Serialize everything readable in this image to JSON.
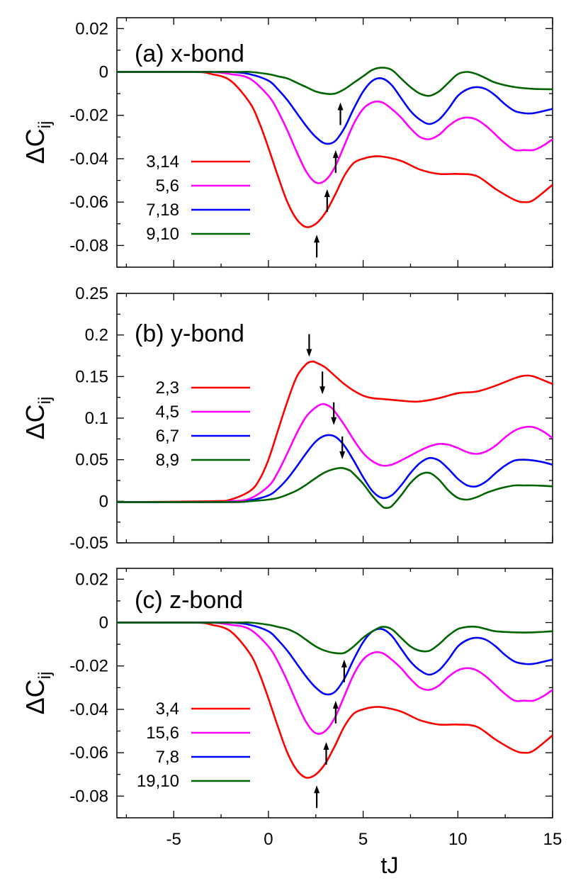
{
  "chart_data": [
    {
      "type": "line",
      "title": "(a) x-bond",
      "ylabel": "ΔC",
      "ylabel_sub": "ij",
      "xlabel": "",
      "xlim": [
        -8,
        15
      ],
      "ylim": [
        -0.09,
        0.025
      ],
      "yticks": [
        0.02,
        0,
        -0.02,
        -0.04,
        -0.06,
        -0.08
      ],
      "ytick_labels": [
        "0.02",
        "0",
        "-0.02",
        "-0.04",
        "-0.06",
        "-0.08"
      ],
      "xticks": [
        -5,
        0,
        5,
        10,
        15
      ],
      "xtick_labels": [],
      "legend_position": "left",
      "series": [
        {
          "name": "3,14",
          "color": "#ff0000",
          "x": [
            -8,
            -4,
            -3,
            -2,
            -1,
            -0.5,
            0,
            0.5,
            1,
            1.5,
            2,
            2.5,
            3,
            3.5,
            4,
            4.5,
            5,
            5.5,
            6,
            7,
            8,
            9,
            10,
            11,
            12,
            13,
            13.5,
            14,
            15
          ],
          "y": [
            0,
            0,
            -0.001,
            -0.004,
            -0.014,
            -0.023,
            -0.035,
            -0.048,
            -0.06,
            -0.068,
            -0.0715,
            -0.07,
            -0.065,
            -0.057,
            -0.048,
            -0.042,
            -0.04,
            -0.039,
            -0.039,
            -0.041,
            -0.045,
            -0.047,
            -0.047,
            -0.048,
            -0.054,
            -0.059,
            -0.06,
            -0.059,
            -0.052
          ]
        },
        {
          "name": "5,6",
          "color": "#ff00ff",
          "x": [
            -8,
            -4,
            -3,
            -2,
            -1,
            0,
            0.5,
            1,
            1.5,
            2,
            2.5,
            3,
            3.5,
            4,
            4.5,
            5,
            5.5,
            6,
            6.5,
            7,
            7.5,
            8,
            8.5,
            9,
            9.5,
            10,
            10.5,
            11,
            11.5,
            12,
            12.5,
            13,
            13.5,
            14,
            14.5,
            15
          ],
          "y": [
            0,
            0,
            0,
            -0.001,
            -0.003,
            -0.011,
            -0.018,
            -0.027,
            -0.037,
            -0.046,
            -0.051,
            -0.05,
            -0.044,
            -0.034,
            -0.024,
            -0.017,
            -0.014,
            -0.014,
            -0.017,
            -0.021,
            -0.026,
            -0.03,
            -0.031,
            -0.029,
            -0.025,
            -0.022,
            -0.021,
            -0.022,
            -0.025,
            -0.029,
            -0.033,
            -0.036,
            -0.036,
            -0.036,
            -0.034,
            -0.031
          ]
        },
        {
          "name": "7,18",
          "color": "#0000ff",
          "x": [
            -8,
            -3,
            -2,
            -1,
            0,
            0.5,
            1,
            1.5,
            2,
            2.5,
            3,
            3.5,
            4,
            4.5,
            5,
            5.5,
            6,
            6.5,
            7,
            7.5,
            8,
            8.5,
            9,
            9.5,
            10,
            10.5,
            11,
            11.5,
            12,
            12.5,
            13,
            13.5,
            14,
            15
          ],
          "y": [
            0,
            0,
            0,
            -0.001,
            -0.004,
            -0.008,
            -0.013,
            -0.019,
            -0.025,
            -0.03,
            -0.033,
            -0.032,
            -0.026,
            -0.017,
            -0.009,
            -0.004,
            -0.003,
            -0.006,
            -0.012,
            -0.018,
            -0.022,
            -0.024,
            -0.022,
            -0.017,
            -0.011,
            -0.008,
            -0.007,
            -0.008,
            -0.011,
            -0.015,
            -0.018,
            -0.019,
            -0.019,
            -0.017
          ]
        },
        {
          "name": "9,10",
          "color": "#006400",
          "x": [
            -8,
            -2,
            -1,
            0,
            0.5,
            1,
            1.5,
            2,
            2.5,
            3,
            3.5,
            4,
            4.5,
            5,
            5.5,
            6,
            6.5,
            7,
            7.5,
            8,
            8.5,
            9,
            9.5,
            10,
            10.5,
            11,
            11.5,
            12,
            13,
            14,
            15
          ],
          "y": [
            0,
            0,
            0,
            -0.001,
            -0.002,
            -0.003,
            -0.005,
            -0.007,
            -0.009,
            -0.01,
            -0.01,
            -0.008,
            -0.005,
            -0.002,
            0.001,
            0.002,
            0.001,
            -0.003,
            -0.007,
            -0.01,
            -0.011,
            -0.009,
            -0.005,
            -0.001,
            0,
            -0.001,
            -0.003,
            -0.005,
            -0.007,
            -0.0078,
            -0.008
          ]
        }
      ],
      "annotations": [
        {
          "type": "arrow-up",
          "x": 2.55,
          "y": -0.0855
        },
        {
          "type": "arrow-up",
          "x": 3.1,
          "y": -0.0645
        },
        {
          "type": "arrow-up",
          "x": 3.55,
          "y": -0.0465
        },
        {
          "type": "arrow-up",
          "x": 3.8,
          "y": -0.0245
        }
      ]
    },
    {
      "type": "line",
      "title": "(b) y-bond",
      "ylabel": "ΔC",
      "ylabel_sub": "ij",
      "xlabel": "",
      "xlim": [
        -8,
        15
      ],
      "ylim": [
        -0.05,
        0.25
      ],
      "yticks": [
        0.25,
        0.2,
        0.15,
        0.1,
        0.05,
        0,
        -0.05
      ],
      "ytick_labels": [
        "0.25",
        "0.2",
        "0.15",
        "0.1",
        "0.05",
        "0",
        "-0.05"
      ],
      "xticks": [
        -5,
        0,
        5,
        10,
        15
      ],
      "xtick_labels": [],
      "legend_position": "left",
      "series": [
        {
          "name": "2,3",
          "color": "#ff0000",
          "x": [
            -8,
            -3,
            -2,
            -1,
            -0.5,
            0,
            0.5,
            1,
            1.5,
            2,
            2.3,
            2.5,
            3,
            3.5,
            4,
            4.5,
            5,
            5.5,
            6,
            6.5,
            7,
            7.5,
            8,
            9,
            10,
            11,
            12,
            13,
            13.5,
            14,
            15
          ],
          "y": [
            -0.001,
            0,
            0.002,
            0.012,
            0.025,
            0.05,
            0.085,
            0.12,
            0.15,
            0.165,
            0.168,
            0.167,
            0.161,
            0.151,
            0.141,
            0.133,
            0.127,
            0.124,
            0.123,
            0.122,
            0.121,
            0.12,
            0.12,
            0.124,
            0.13,
            0.132,
            0.139,
            0.148,
            0.151,
            0.15,
            0.141
          ]
        },
        {
          "name": "4,5",
          "color": "#ff00ff",
          "x": [
            -8,
            -3,
            -2,
            -1,
            0,
            0.5,
            1,
            1.5,
            2,
            2.5,
            2.9,
            3.3,
            3.5,
            4,
            4.5,
            5,
            5.5,
            6,
            6.5,
            7,
            7.5,
            8,
            8.5,
            9,
            9.5,
            10,
            10.5,
            11,
            11.5,
            12,
            12.5,
            13,
            13.5,
            14,
            14.5,
            15
          ],
          "y": [
            -0.001,
            -0.001,
            0,
            0.003,
            0.018,
            0.035,
            0.058,
            0.082,
            0.102,
            0.113,
            0.117,
            0.113,
            0.108,
            0.092,
            0.074,
            0.058,
            0.048,
            0.043,
            0.044,
            0.049,
            0.055,
            0.061,
            0.066,
            0.069,
            0.068,
            0.064,
            0.059,
            0.057,
            0.06,
            0.067,
            0.077,
            0.085,
            0.089,
            0.089,
            0.084,
            0.076
          ]
        },
        {
          "name": "6,7",
          "color": "#0000ff",
          "x": [
            -8,
            -2,
            -1,
            0,
            0.5,
            1,
            1.5,
            2,
            2.5,
            3,
            3.5,
            4,
            4.5,
            5,
            5.5,
            6,
            6.5,
            7,
            7.5,
            8,
            8.5,
            9,
            9.5,
            10,
            10.5,
            11,
            11.5,
            12,
            12.5,
            13,
            13.5,
            14,
            14.5,
            15
          ],
          "y": [
            -0.001,
            -0.001,
            0.001,
            0.007,
            0.015,
            0.027,
            0.042,
            0.058,
            0.072,
            0.079,
            0.078,
            0.067,
            0.049,
            0.029,
            0.012,
            0.004,
            0.007,
            0.019,
            0.034,
            0.046,
            0.052,
            0.049,
            0.039,
            0.027,
            0.019,
            0.018,
            0.024,
            0.034,
            0.043,
            0.049,
            0.05,
            0.049,
            0.047,
            0.044
          ]
        },
        {
          "name": "8,9",
          "color": "#006400",
          "x": [
            -8,
            -2,
            -1,
            0,
            0.5,
            1,
            1.5,
            2,
            2.5,
            3,
            3.5,
            3.9,
            4.3,
            4.5,
            5,
            5.5,
            6,
            6.2,
            6.5,
            7,
            7.5,
            8,
            8.5,
            9,
            9.5,
            10,
            10.5,
            11,
            11.5,
            12,
            12.5,
            13,
            13.5,
            14,
            15
          ],
          "y": [
            -0.001,
            -0.001,
            0,
            0.002,
            0.004,
            0.008,
            0.013,
            0.02,
            0.028,
            0.035,
            0.039,
            0.04,
            0.037,
            0.033,
            0.021,
            0.006,
            -0.006,
            -0.008,
            -0.006,
            0.007,
            0.022,
            0.032,
            0.034,
            0.026,
            0.013,
            0.004,
            0.002,
            0.005,
            0.01,
            0.014,
            0.017,
            0.019,
            0.019,
            0.019,
            0.018
          ]
        }
      ],
      "annotations": [
        {
          "type": "arrow-down",
          "x": 2.15,
          "y": 0.201
        },
        {
          "type": "arrow-down",
          "x": 2.85,
          "y": 0.156
        },
        {
          "type": "arrow-down",
          "x": 3.45,
          "y": 0.119
        },
        {
          "type": "arrow-down",
          "x": 3.9,
          "y": 0.078
        }
      ]
    },
    {
      "type": "line",
      "title": "(c) z-bond",
      "ylabel": "ΔC",
      "ylabel_sub": "ij",
      "xlabel": "tJ",
      "xlim": [
        -8,
        15
      ],
      "ylim": [
        -0.09,
        0.025
      ],
      "yticks": [
        0.02,
        0,
        -0.02,
        -0.04,
        -0.06,
        -0.08
      ],
      "ytick_labels": [
        "0.02",
        "0",
        "-0.02",
        "-0.04",
        "-0.06",
        "-0.08"
      ],
      "xticks": [
        -5,
        0,
        5,
        10,
        15
      ],
      "xtick_labels": [
        "-5",
        "0",
        "5",
        "10",
        "15"
      ],
      "legend_position": "left",
      "series": [
        {
          "name": "3,4",
          "color": "#ff0000",
          "x": [
            -8,
            -4,
            -3,
            -2,
            -1,
            -0.5,
            0,
            0.5,
            1,
            1.5,
            2,
            2.5,
            3,
            3.5,
            4,
            4.5,
            5,
            5.5,
            6,
            7,
            8,
            9,
            10,
            11,
            12,
            13,
            13.5,
            14,
            15
          ],
          "y": [
            0,
            0,
            -0.001,
            -0.004,
            -0.014,
            -0.023,
            -0.035,
            -0.048,
            -0.06,
            -0.068,
            -0.0715,
            -0.07,
            -0.065,
            -0.057,
            -0.048,
            -0.042,
            -0.04,
            -0.039,
            -0.039,
            -0.041,
            -0.045,
            -0.047,
            -0.047,
            -0.048,
            -0.054,
            -0.059,
            -0.06,
            -0.059,
            -0.052
          ]
        },
        {
          "name": "15,6",
          "color": "#ff00ff",
          "x": [
            -8,
            -4,
            -3,
            -2,
            -1,
            0,
            0.5,
            1,
            1.5,
            2,
            2.5,
            3,
            3.5,
            4,
            4.5,
            5,
            5.5,
            6,
            6.5,
            7,
            7.5,
            8,
            8.5,
            9,
            9.5,
            10,
            10.5,
            11,
            11.5,
            12,
            12.5,
            13,
            13.5,
            14,
            14.5,
            15
          ],
          "y": [
            0,
            0,
            0,
            -0.001,
            -0.003,
            -0.011,
            -0.018,
            -0.027,
            -0.037,
            -0.046,
            -0.051,
            -0.05,
            -0.044,
            -0.034,
            -0.024,
            -0.017,
            -0.014,
            -0.014,
            -0.017,
            -0.021,
            -0.026,
            -0.03,
            -0.031,
            -0.029,
            -0.025,
            -0.022,
            -0.021,
            -0.022,
            -0.025,
            -0.029,
            -0.033,
            -0.036,
            -0.036,
            -0.036,
            -0.034,
            -0.031
          ]
        },
        {
          "name": "7,8",
          "color": "#0000ff",
          "x": [
            -8,
            -3,
            -2,
            -1,
            0,
            0.5,
            1,
            1.5,
            2,
            2.5,
            3,
            3.5,
            4,
            4.5,
            5,
            5.5,
            6,
            6.5,
            7,
            7.5,
            8,
            8.5,
            9,
            9.5,
            10,
            10.5,
            11,
            11.5,
            12,
            12.5,
            13,
            13.5,
            14,
            15
          ],
          "y": [
            0,
            0,
            0,
            -0.001,
            -0.004,
            -0.008,
            -0.013,
            -0.019,
            -0.025,
            -0.03,
            -0.033,
            -0.032,
            -0.026,
            -0.017,
            -0.009,
            -0.004,
            -0.003,
            -0.006,
            -0.012,
            -0.018,
            -0.022,
            -0.024,
            -0.022,
            -0.017,
            -0.011,
            -0.008,
            -0.007,
            -0.008,
            -0.011,
            -0.015,
            -0.018,
            -0.019,
            -0.019,
            -0.017
          ]
        },
        {
          "name": "19,10",
          "color": "#006400",
          "x": [
            -8,
            -2,
            -1,
            0,
            0.5,
            1,
            1.5,
            2,
            2.5,
            3,
            3.5,
            4,
            4.5,
            5,
            5.5,
            6,
            6.5,
            7,
            7.5,
            8,
            8.5,
            9,
            9.5,
            10,
            10.5,
            11,
            11.5,
            12,
            13,
            14,
            15
          ],
          "y": [
            0,
            0,
            0,
            -0.001,
            -0.002,
            -0.003,
            -0.005,
            -0.008,
            -0.011,
            -0.013,
            -0.014,
            -0.014,
            -0.011,
            -0.007,
            -0.004,
            -0.002,
            -0.003,
            -0.007,
            -0.011,
            -0.013,
            -0.013,
            -0.01,
            -0.006,
            -0.003,
            -0.002,
            -0.002,
            -0.003,
            -0.004,
            -0.0045,
            -0.0045,
            -0.004
          ]
        }
      ],
      "annotations": [
        {
          "type": "arrow-up",
          "x": 2.55,
          "y": -0.0855
        },
        {
          "type": "arrow-up",
          "x": 3.05,
          "y": -0.0655
        },
        {
          "type": "arrow-up",
          "x": 3.55,
          "y": -0.0465
        },
        {
          "type": "arrow-up",
          "x": 4.0,
          "y": -0.0275
        }
      ]
    }
  ]
}
